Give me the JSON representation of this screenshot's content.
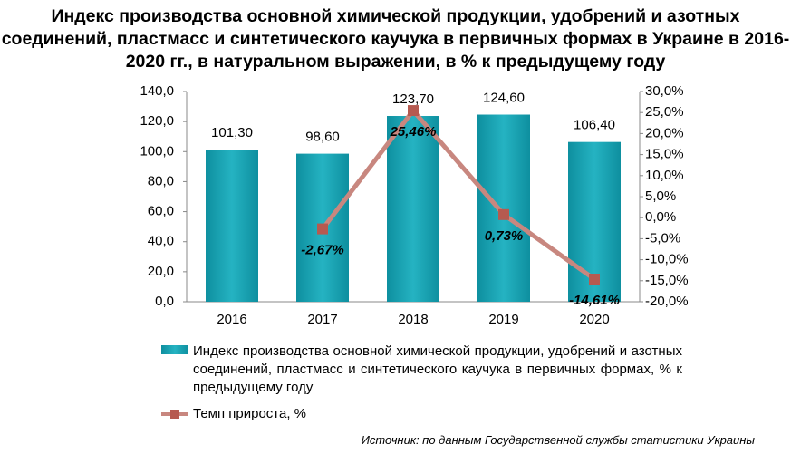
{
  "chart_data": {
    "type": "bar_line",
    "title": "Индекс производства основной химической продукции, удобрений и азотных соединений, пластмасс и синтетического каучука в первичных формах в Украине в 2016-2020 гг., в натуральном выражении, в % к предыдущему году",
    "source": "Источник: по данным Государственной службы статистики Украины",
    "categories": [
      "2016",
      "2017",
      "2018",
      "2019",
      "2020"
    ],
    "series": [
      {
        "name": "Индекс производства основной химической продукции, удобрений и азотных соединений, пластмасс и синтетического каучука в первичных формах, % к предыдущему году",
        "type": "bar",
        "color": "#17a2b2",
        "values": [
          101.3,
          98.6,
          123.7,
          124.6,
          106.4
        ],
        "value_labels": [
          "101,30",
          "98,60",
          "123,70",
          "124,60",
          "106,40"
        ]
      },
      {
        "name": "Темп прироста, %",
        "type": "line",
        "axis": "y2",
        "color": "#c8877f",
        "marker_color": "#b65a50",
        "values": [
          null,
          -2.67,
          25.46,
          0.73,
          -14.61
        ],
        "value_labels": [
          null,
          "-2,67%",
          "25,46%",
          "0,73%",
          "-14,61%"
        ]
      }
    ],
    "ylim": [
      0,
      140
    ],
    "yticks": [
      {
        "value": 0,
        "label": "0,0"
      },
      {
        "value": 20,
        "label": "20,0"
      },
      {
        "value": 40,
        "label": "40,0"
      },
      {
        "value": 60,
        "label": "60,0"
      },
      {
        "value": 80,
        "label": "80,0"
      },
      {
        "value": 100,
        "label": "100,0"
      },
      {
        "value": 120,
        "label": "120,0"
      },
      {
        "value": 140,
        "label": "140,0"
      }
    ],
    "y2lim": [
      -20,
      30
    ],
    "y2ticks": [
      {
        "value": -20,
        "label": "-20,0%"
      },
      {
        "value": -15,
        "label": "-15,0%"
      },
      {
        "value": -10,
        "label": "-10,0%"
      },
      {
        "value": -5,
        "label": "-5,0%"
      },
      {
        "value": 0,
        "label": "0,0%"
      },
      {
        "value": 5,
        "label": "5,0%"
      },
      {
        "value": 10,
        "label": "10,0%"
      },
      {
        "value": 15,
        "label": "15,0%"
      },
      {
        "value": 20,
        "label": "20,0%"
      },
      {
        "value": 25,
        "label": "25,0%"
      },
      {
        "value": 30,
        "label": "30,0%"
      }
    ],
    "grid": false
  }
}
